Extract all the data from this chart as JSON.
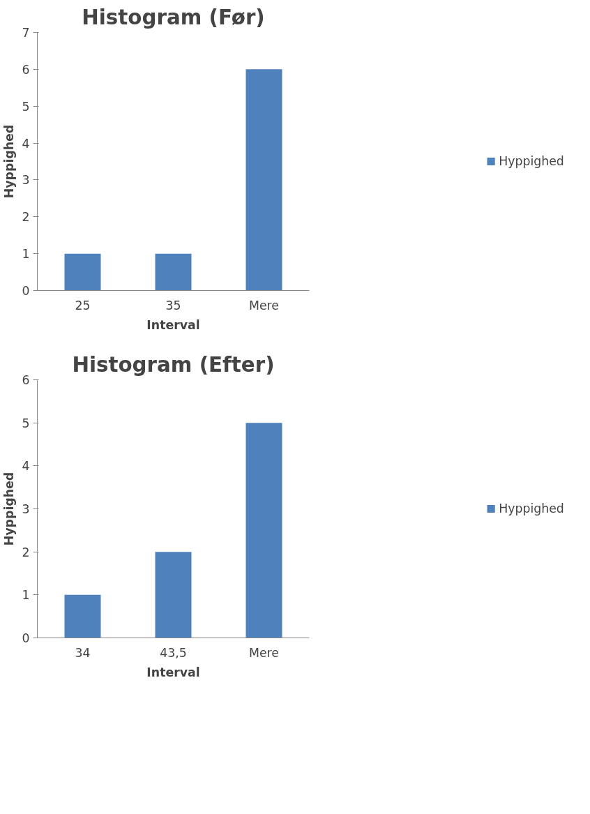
{
  "chart_data": [
    {
      "type": "bar",
      "title": "Histogram (Før)",
      "xlabel": "Interval",
      "ylabel": "Hyppighed",
      "categories": [
        "25",
        "35",
        "Mere"
      ],
      "series": [
        {
          "name": "Hyppighed",
          "color": "#4f81bd",
          "values": [
            1,
            1,
            6
          ]
        }
      ],
      "ylim": [
        0,
        7
      ],
      "yticks": [
        0,
        1,
        2,
        3,
        4,
        5,
        6,
        7
      ],
      "grid": false,
      "legend": "right"
    },
    {
      "type": "bar",
      "title": "Histogram (Efter)",
      "xlabel": "Interval",
      "ylabel": "Hyppighed",
      "categories": [
        "34",
        "43,5",
        "Mere"
      ],
      "series": [
        {
          "name": "Hyppighed",
          "color": "#4f81bd",
          "values": [
            1,
            2,
            5
          ]
        }
      ],
      "ylim": [
        0,
        6
      ],
      "yticks": [
        0,
        1,
        2,
        3,
        4,
        5,
        6
      ],
      "grid": false,
      "legend": "right"
    }
  ]
}
